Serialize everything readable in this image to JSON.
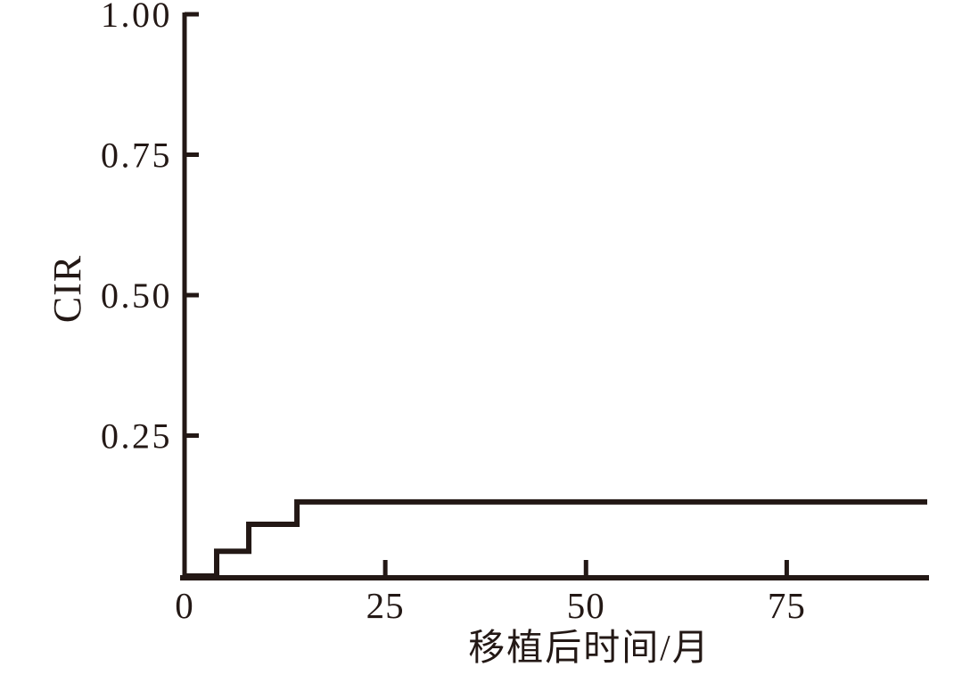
{
  "figure": {
    "background": "#ffffff",
    "line_color": "#231815"
  },
  "chart_data": {
    "type": "line",
    "subtype": "step-cumulative-incidence",
    "title": "",
    "xlabel": "移植后时间/月",
    "ylabel": "CIR",
    "xlim": [
      0,
      92.5
    ],
    "ylim": [
      0,
      1.0
    ],
    "grid": false,
    "legend_visible": false,
    "tick_direction": "in",
    "xticks": [
      {
        "value": 0,
        "label": "0"
      },
      {
        "value": 25,
        "label": "25"
      },
      {
        "value": 50,
        "label": "50"
      },
      {
        "value": 75,
        "label": "75"
      }
    ],
    "yticks": [
      {
        "value": 0.25,
        "label": "0.25"
      },
      {
        "value": 0.5,
        "label": "0.50"
      },
      {
        "value": 0.75,
        "label": "0.75"
      },
      {
        "value": 1.0,
        "label": "1.00"
      }
    ],
    "series": [
      {
        "name": "CIR",
        "color": "#231815",
        "style": "step-post",
        "points": [
          {
            "x": 0,
            "y": 0
          },
          {
            "x": 4,
            "y": 0.044
          },
          {
            "x": 8,
            "y": 0.092
          },
          {
            "x": 14,
            "y": 0.132
          },
          {
            "x": 92.5,
            "y": 0.132
          }
        ]
      }
    ]
  }
}
